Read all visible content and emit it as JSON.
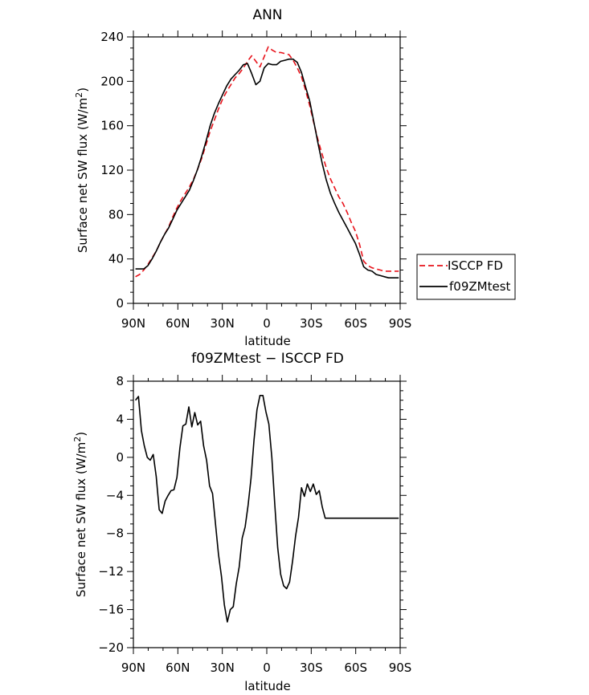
{
  "chart_data": [
    {
      "type": "line",
      "title": "ANN",
      "xlabel": "latitude",
      "ylabel": "Surface net SW flux (W/m",
      "ylabel_sup": "2",
      "ylabel_end": ")",
      "xlim": [
        90,
        -90
      ],
      "ylim": [
        0,
        240
      ],
      "xticks": [
        {
          "value": 90,
          "label": "90N"
        },
        {
          "value": 60,
          "label": "60N"
        },
        {
          "value": 30,
          "label": "30N"
        },
        {
          "value": 0,
          "label": "0"
        },
        {
          "value": -30,
          "label": "30S"
        },
        {
          "value": -60,
          "label": "60S"
        },
        {
          "value": -90,
          "label": "90S"
        }
      ],
      "yticks": [
        {
          "value": 0,
          "label": "0"
        },
        {
          "value": 40,
          "label": "40"
        },
        {
          "value": 80,
          "label": "80"
        },
        {
          "value": 120,
          "label": "120"
        },
        {
          "value": 160,
          "label": "160"
        },
        {
          "value": 200,
          "label": "200"
        },
        {
          "value": 240,
          "label": "240"
        }
      ],
      "legend": {
        "placement": "right"
      },
      "series": [
        {
          "name": "ISCCP FD",
          "color": "#e8131b",
          "dash": true,
          "x": [
            88.6,
            85.8,
            83,
            80.2,
            77.4,
            74.6,
            71.8,
            69,
            66.2,
            63.4,
            60.6,
            57.8,
            55,
            52.2,
            49.4,
            46.6,
            43.8,
            41,
            38.2,
            35.4,
            32.6,
            29.8,
            27,
            24.2,
            21.4,
            18.6,
            15.8,
            13,
            10.2,
            7.4,
            4.6,
            1.8,
            -1,
            -3.8,
            -6.6,
            -9.4,
            -12.2,
            -15,
            -17.8,
            -20.6,
            -23.4,
            -26.2,
            -29,
            -31.8,
            -34.6,
            -37.4,
            -40.2,
            -43,
            -45.8,
            -48.6,
            -51.4,
            -54.2,
            -57,
            -59.8,
            -62.6,
            -65.4,
            -68.2,
            -71,
            -73.8,
            -76.6,
            -79.4,
            -82.2,
            -85,
            -87.8,
            -89
          ],
          "y": [
            24,
            26,
            30,
            35,
            41,
            47,
            55,
            62,
            69,
            78,
            86,
            93,
            99,
            105,
            112,
            121,
            131,
            143,
            155,
            165,
            175,
            184,
            191,
            197,
            203,
            207,
            212,
            218,
            223,
            218,
            213,
            222,
            231,
            228,
            226,
            226,
            225,
            224,
            219,
            212,
            204,
            192,
            178,
            162,
            147,
            134,
            122,
            112,
            104,
            96,
            90,
            82,
            73,
            65,
            53,
            38,
            34,
            32,
            31,
            30,
            29,
            29,
            29,
            29,
            29
          ]
        },
        {
          "name": "f09ZMtest",
          "color": "#000000",
          "dash": false,
          "x": [
            88.6,
            85.8,
            83,
            80.2,
            77.4,
            74.6,
            71.8,
            69,
            66.2,
            63.4,
            60.6,
            57.8,
            55,
            52.2,
            49.4,
            46.6,
            43.8,
            41,
            38.2,
            35.4,
            32.6,
            29.8,
            27,
            24.2,
            21.4,
            18.6,
            15.8,
            13,
            10.2,
            7.4,
            4.6,
            1.8,
            -1,
            -3.8,
            -6.6,
            -9.4,
            -12.2,
            -15,
            -17.8,
            -20.6,
            -23.4,
            -26.2,
            -29,
            -31.8,
            -34.6,
            -37.4,
            -40.2,
            -43,
            -45.8,
            -48.6,
            -51.4,
            -54.2,
            -57,
            -59.8,
            -62.6,
            -65.4,
            -68.2,
            -71,
            -73.8,
            -76.6,
            -79.4,
            -82.2,
            -85,
            -87.8,
            -89
          ],
          "y": [
            31,
            31,
            31,
            34,
            40,
            47,
            55,
            62,
            68,
            76,
            84,
            90,
            96,
            102,
            111,
            121,
            133,
            146,
            160,
            171,
            180,
            188,
            196,
            202,
            206,
            210,
            215,
            216,
            207,
            197,
            200,
            212,
            216,
            215,
            215,
            218,
            219,
            220,
            220,
            217,
            208,
            195,
            182,
            163,
            144,
            126,
            111,
            99,
            90,
            82,
            75,
            68,
            61,
            54,
            44,
            33,
            30,
            29,
            26,
            25,
            24,
            23,
            23,
            23,
            23
          ]
        }
      ]
    },
    {
      "type": "line",
      "title": "f09ZMtest − ISCCP FD",
      "xlabel": "latitude",
      "ylabel": "Surface net SW flux (W/m",
      "ylabel_sup": "2",
      "ylabel_end": ")",
      "xlim": [
        90,
        -90
      ],
      "ylim": [
        -20,
        8
      ],
      "xticks": [
        {
          "value": 90,
          "label": "90N"
        },
        {
          "value": 60,
          "label": "60N"
        },
        {
          "value": 30,
          "label": "30N"
        },
        {
          "value": 0,
          "label": "0"
        },
        {
          "value": -30,
          "label": "30S"
        },
        {
          "value": -60,
          "label": "60S"
        },
        {
          "value": -90,
          "label": "90S"
        }
      ],
      "yticks": [
        {
          "value": -20,
          "label": "−20"
        },
        {
          "value": -16,
          "label": "−16"
        },
        {
          "value": -12,
          "label": "−12"
        },
        {
          "value": -8,
          "label": "−8"
        },
        {
          "value": -4,
          "label": "−4"
        },
        {
          "value": 0,
          "label": "0"
        },
        {
          "value": 4,
          "label": "4"
        },
        {
          "value": 8,
          "label": "8"
        }
      ],
      "series": [
        {
          "color": "#000000",
          "dash": false,
          "x": [
            88.6,
            86.6,
            84.6,
            82.6,
            80.6,
            78.6,
            76.6,
            74.6,
            72.6,
            70.6,
            68.6,
            66.6,
            64.6,
            62.6,
            60.6,
            58.6,
            56.6,
            54.6,
            52.6,
            50.6,
            48.6,
            46.6,
            44.6,
            42.6,
            40.6,
            38.6,
            36.6,
            34.6,
            32.6,
            30.6,
            28.6,
            26.6,
            24.6,
            22.6,
            20.6,
            18.6,
            16.6,
            14.6,
            12.6,
            10.6,
            8.6,
            6.6,
            4.6,
            2.6,
            0.6,
            -1.4,
            -3.4,
            -5.4,
            -7.4,
            -9.4,
            -11.4,
            -13.4,
            -15.4,
            -17.4,
            -19.4,
            -21.4,
            -23.4,
            -25.4,
            -27.4,
            -29.4,
            -31.4,
            -33.4,
            -35.4,
            -37.4,
            -39.4,
            -41.4,
            -43.4,
            -45.4,
            -47.4,
            -49.4,
            -51.4,
            -53.4,
            -55.4,
            -57.4,
            -59.4,
            -61.4,
            -63.4,
            -65.4,
            -67.4,
            -69.4,
            -71.4,
            -73.4,
            -75.4,
            -77.4,
            -79.4,
            -81.4,
            -83.4,
            -85.4,
            -87.4,
            -89
          ],
          "y": [
            6,
            6.4,
            2.8,
            1.2,
            0,
            -0.3,
            0.3,
            -2,
            -5.5,
            -5.9,
            -4.6,
            -4,
            -3.5,
            -3.4,
            -2.1,
            1,
            3.3,
            3.5,
            5.3,
            3.2,
            4.7,
            3.4,
            3.8,
            1.2,
            -0.3,
            -3,
            -3.8,
            -7,
            -10.2,
            -12.5,
            -15.5,
            -17.3,
            -16,
            -15.7,
            -13.3,
            -11.5,
            -8.5,
            -7.3,
            -5,
            -2.2,
            1.8,
            5,
            6.5,
            6.5,
            4.8,
            3.5,
            0,
            -5,
            -9.5,
            -12.3,
            -13.5,
            -13.8,
            -13.1,
            -10.9,
            -8.3,
            -6.3,
            -3.2,
            -4.1,
            -2.8,
            -3.6,
            -2.8,
            -3.9,
            -3.5,
            -5.2,
            -6.4,
            -6.4,
            -6.4,
            -6.4,
            -6.4,
            -6.4,
            -6.4,
            -6.4,
            -6.4,
            -6.4,
            -6.4,
            -6.4,
            -6.4,
            -6.4,
            -6.4,
            -6.4,
            -6.4,
            -6.4,
            -6.4,
            -6.4,
            -6.4,
            -6.4,
            -6.4,
            -6.4,
            -6.4,
            -6.4
          ]
        }
      ]
    }
  ]
}
